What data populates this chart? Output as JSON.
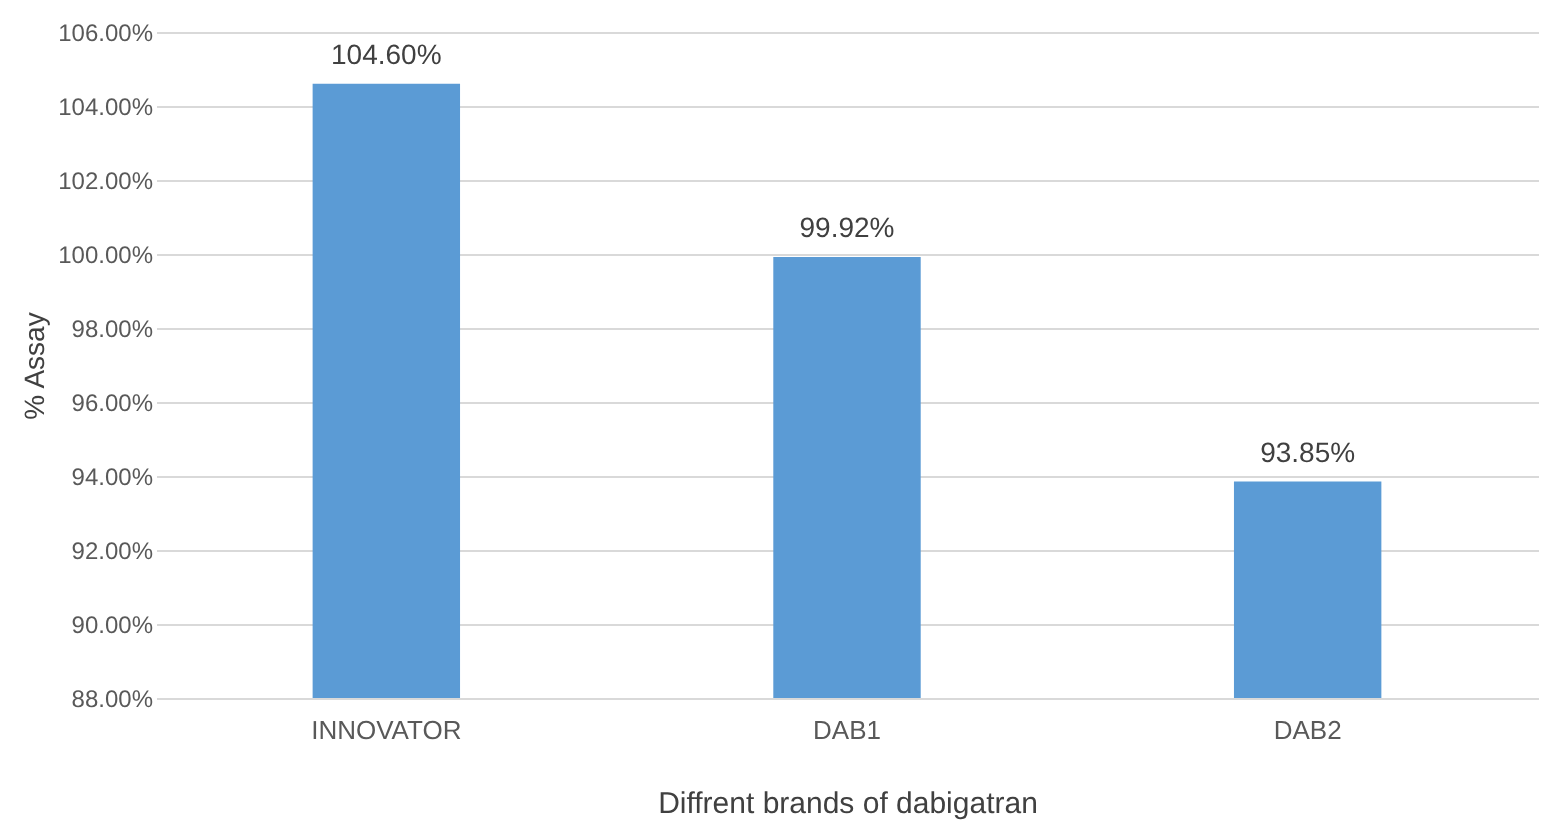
{
  "chart_data": {
    "type": "bar",
    "categories": [
      "INNOVATOR",
      "DAB1",
      "DAB2"
    ],
    "values": [
      104.6,
      99.92,
      93.85
    ],
    "color": "#5b9bd5",
    "value_labels": [
      "104.60%",
      "99.92%",
      "93.85%"
    ],
    "xlabel": "Diffrent brands of dabigatran",
    "ylabel": "% Assay",
    "ylim": [
      88,
      106
    ],
    "yticks": [
      {
        "value": 88,
        "label": "88.00%"
      },
      {
        "value": 90,
        "label": "90.00%"
      },
      {
        "value": 92,
        "label": "92.00%"
      },
      {
        "value": 94,
        "label": "94.00%"
      },
      {
        "value": 96,
        "label": "96.00%"
      },
      {
        "value": 98,
        "label": "98.00%"
      },
      {
        "value": 100,
        "label": "100.00%"
      },
      {
        "value": 102,
        "label": "102.00%"
      },
      {
        "value": 104,
        "label": "104.00%"
      },
      {
        "value": 106,
        "label": "106.00%"
      }
    ],
    "grid": "y"
  }
}
